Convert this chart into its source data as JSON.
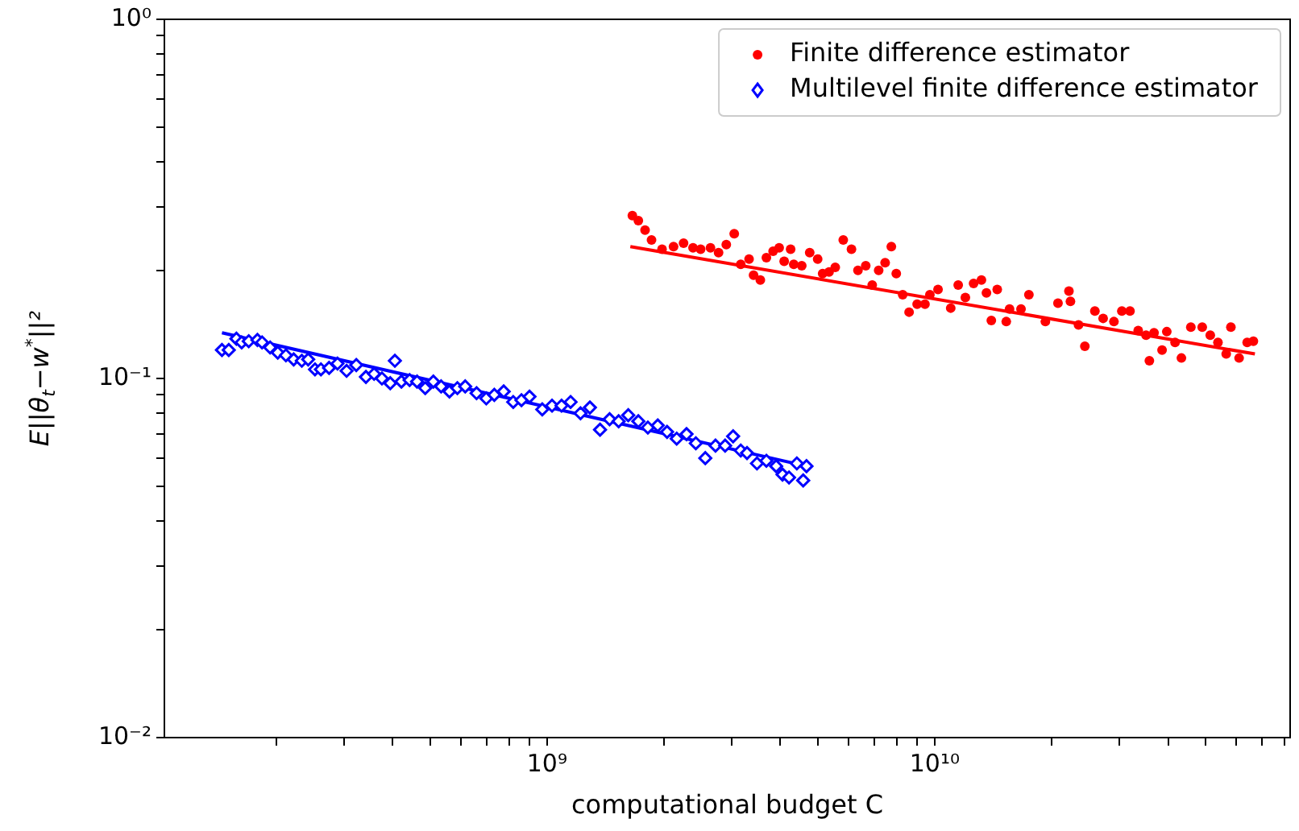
{
  "chart_data": {
    "type": "scatter",
    "xlabel": "computational budget C",
    "ylabel": "E||θ$_{t}$−w$^{*}$||²",
    "log": "xy",
    "grid": false,
    "legend": "top right",
    "xlim": [
      103000000.0,
      82600000000.0
    ],
    "xticks": [
      {
        "value": 200000000.0,
        "label": null
      },
      {
        "value": 300000000.0,
        "label": null
      },
      {
        "value": 400000000.0,
        "label": null
      },
      {
        "value": 500000000.0,
        "label": null
      },
      {
        "value": 600000000.0,
        "label": null
      },
      {
        "value": 700000000.0,
        "label": null
      },
      {
        "value": 800000000.0,
        "label": null
      },
      {
        "value": 900000000.0,
        "label": null
      },
      {
        "value": 1000000000.0,
        "label": "10⁹"
      },
      {
        "value": 2000000000.0,
        "label": null
      },
      {
        "value": 3000000000.0,
        "label": null
      },
      {
        "value": 4000000000.0,
        "label": null
      },
      {
        "value": 5000000000.0,
        "label": null
      },
      {
        "value": 6000000000.0,
        "label": null
      },
      {
        "value": 7000000000.0,
        "label": null
      },
      {
        "value": 8000000000.0,
        "label": null
      },
      {
        "value": 9000000000.0,
        "label": null
      },
      {
        "value": 10000000000.0,
        "label": "10¹⁰"
      },
      {
        "value": 20000000000.0,
        "label": null
      },
      {
        "value": 30000000000.0,
        "label": null
      },
      {
        "value": 40000000000.0,
        "label": null
      },
      {
        "value": 50000000000.0,
        "label": null
      },
      {
        "value": 60000000000.0,
        "label": null
      },
      {
        "value": 70000000000.0,
        "label": null
      },
      {
        "value": 80000000000.0,
        "label": null
      }
    ],
    "ylim": [
      0.01,
      1
    ],
    "yticks": [
      {
        "value": 0.01,
        "label": "10⁻²"
      },
      {
        "value": 0.02,
        "label": null
      },
      {
        "value": 0.03,
        "label": null
      },
      {
        "value": 0.04,
        "label": null
      },
      {
        "value": 0.05,
        "label": null
      },
      {
        "value": 0.06,
        "label": null
      },
      {
        "value": 0.07,
        "label": null
      },
      {
        "value": 0.08,
        "label": null
      },
      {
        "value": 0.09,
        "label": null
      },
      {
        "value": 0.1,
        "label": "10⁻¹"
      },
      {
        "value": 0.2,
        "label": null
      },
      {
        "value": 0.3,
        "label": null
      },
      {
        "value": 0.4,
        "label": null
      },
      {
        "value": 0.5,
        "label": null
      },
      {
        "value": 0.6,
        "label": null
      },
      {
        "value": 0.7,
        "label": null
      },
      {
        "value": 0.8,
        "label": null
      },
      {
        "value": 0.9,
        "label": null
      },
      {
        "value": 1,
        "label": "10⁰"
      }
    ],
    "series": [
      {
        "type": "scatter",
        "name": "Finite difference estimator",
        "color": "#ff0000",
        "marker": "circle",
        "x": [
          1660000000.0,
          1720000000.0,
          1790000000.0,
          1860000000.0,
          1980000000.0,
          2120000000.0,
          2250000000.0,
          2380000000.0,
          2490000000.0,
          2640000000.0,
          2770000000.0,
          2900000000.0,
          3040000000.0,
          3160000000.0,
          3320000000.0,
          3410000000.0,
          3550000000.0,
          3680000000.0,
          3830000000.0,
          3970000000.0,
          4090000000.0,
          4250000000.0,
          4330000000.0,
          4540000000.0,
          4760000000.0,
          4990000000.0,
          5140000000.0,
          5340000000.0,
          5540000000.0,
          5810000000.0,
          6100000000.0,
          6340000000.0,
          6640000000.0,
          6900000000.0,
          7170000000.0,
          7450000000.0,
          7730000000.0,
          7960000000.0,
          8270000000.0,
          8590000000.0,
          9010000000.0,
          9440000000.0,
          9720000000.0,
          10200000000.0,
          11000000000.0,
          11500000000.0,
          12000000000.0,
          12600000000.0,
          13200000000.0,
          13600000000.0,
          14000000000.0,
          14500000000.0,
          15300000000.0,
          15600000000.0,
          16700000000.0,
          17500000000.0,
          19300000000.0,
          20800000000.0,
          22200000000.0,
          22400000000.0,
          23500000000.0,
          24400000000.0,
          25900000000.0,
          27200000000.0,
          29000000000.0,
          30400000000.0,
          31900000000.0,
          33500000000.0,
          35100000000.0,
          35800000000.0,
          36800000000.0,
          38600000000.0,
          39700000000.0,
          41700000000.0,
          43300000000.0,
          45800000000.0,
          49000000000.0,
          51400000000.0,
          53800000000.0,
          56500000000.0,
          58100000000.0,
          61000000000.0,
          64000000000.0,
          66400000000.0
        ],
        "values": [
          0.284,
          0.275,
          0.259,
          0.243,
          0.229,
          0.233,
          0.238,
          0.231,
          0.229,
          0.231,
          0.224,
          0.236,
          0.253,
          0.208,
          0.215,
          0.194,
          0.188,
          0.217,
          0.226,
          0.231,
          0.212,
          0.229,
          0.208,
          0.206,
          0.224,
          0.215,
          0.196,
          0.198,
          0.204,
          0.243,
          0.229,
          0.2,
          0.206,
          0.182,
          0.2,
          0.21,
          0.233,
          0.196,
          0.171,
          0.153,
          0.161,
          0.161,
          0.171,
          0.177,
          0.157,
          0.182,
          0.168,
          0.184,
          0.188,
          0.173,
          0.145,
          0.177,
          0.144,
          0.156,
          0.156,
          0.171,
          0.144,
          0.162,
          0.175,
          0.164,
          0.141,
          0.123,
          0.154,
          0.147,
          0.144,
          0.154,
          0.154,
          0.136,
          0.132,
          0.112,
          0.134,
          0.12,
          0.135,
          0.126,
          0.114,
          0.139,
          0.139,
          0.132,
          0.126,
          0.117,
          0.139,
          0.114,
          0.126,
          0.127
        ]
      },
      {
        "type": "scatter",
        "name": "Multilevel finite difference estimator",
        "color": "#0000ff",
        "marker": "diamond",
        "x": [
          145000000.0,
          151000000.0,
          158000000.0,
          163000000.0,
          170000000.0,
          179000000.0,
          184000000.0,
          193000000.0,
          202000000.0,
          212000000.0,
          222000000.0,
          233000000.0,
          242000000.0,
          252000000.0,
          261000000.0,
          274000000.0,
          288000000.0,
          304000000.0,
          322000000.0,
          341000000.0,
          358000000.0,
          375000000.0,
          394000000.0,
          405000000.0,
          421000000.0,
          442000000.0,
          462000000.0,
          485000000.0,
          509000000.0,
          533000000.0,
          560000000.0,
          587000000.0,
          615000000.0,
          658000000.0,
          697000000.0,
          731000000.0,
          773000000.0,
          818000000.0,
          859000000.0,
          901000000.0,
          972000000.0,
          1030000000.0,
          1090000000.0,
          1150000000.0,
          1220000000.0,
          1290000000.0,
          1370000000.0,
          1450000000.0,
          1530000000.0,
          1620000000.0,
          1720000000.0,
          1820000000.0,
          1930000000.0,
          2040000000.0,
          2160000000.0,
          2290000000.0,
          2420000000.0,
          2560000000.0,
          2720000000.0,
          2880000000.0,
          3020000000.0,
          3160000000.0,
          3280000000.0,
          3480000000.0,
          3680000000.0,
          3900000000.0,
          4050000000.0,
          4210000000.0,
          4410000000.0,
          4580000000.0,
          4670000000.0
        ],
        "values": [
          0.12,
          0.12,
          0.129,
          0.126,
          0.127,
          0.128,
          0.126,
          0.122,
          0.118,
          0.116,
          0.113,
          0.112,
          0.113,
          0.106,
          0.106,
          0.107,
          0.11,
          0.105,
          0.109,
          0.101,
          0.103,
          0.1,
          0.097,
          0.112,
          0.098,
          0.099,
          0.098,
          0.094,
          0.098,
          0.095,
          0.092,
          0.094,
          0.095,
          0.091,
          0.088,
          0.09,
          0.092,
          0.086,
          0.087,
          0.089,
          0.082,
          0.084,
          0.084,
          0.086,
          0.08,
          0.083,
          0.072,
          0.077,
          0.076,
          0.079,
          0.076,
          0.073,
          0.074,
          0.071,
          0.068,
          0.07,
          0.066,
          0.06,
          0.065,
          0.065,
          0.069,
          0.063,
          0.062,
          0.058,
          0.059,
          0.057,
          0.054,
          0.053,
          0.058,
          0.052,
          0.057
        ]
      },
      {
        "type": "line",
        "color": "#ff0000",
        "marker": "none",
        "line_style": "solid",
        "x": [
          1640000000.0,
          67000000000.0
        ],
        "values": [
          0.233,
          0.117
        ]
      },
      {
        "type": "line",
        "color": "#0000ff",
        "marker": "none",
        "line_style": "solid",
        "x": [
          145000000.0,
          4670000000.0
        ],
        "values": [
          0.134,
          0.057
        ]
      }
    ]
  }
}
